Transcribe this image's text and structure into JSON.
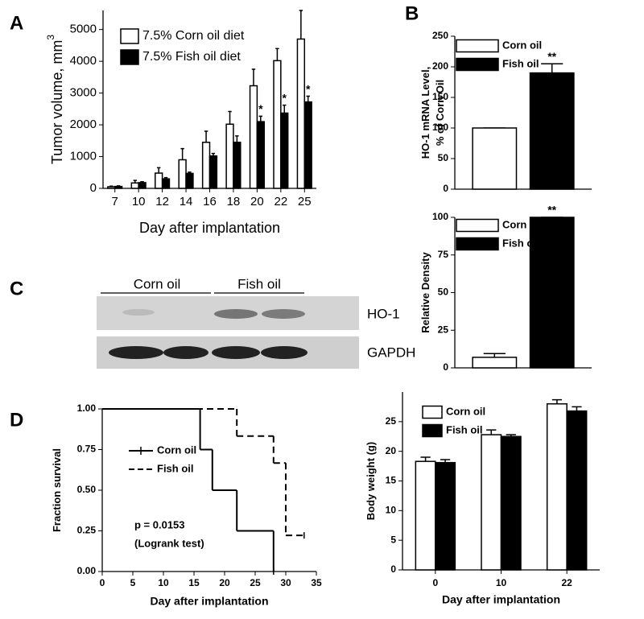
{
  "panel_labels": [
    "A",
    "B",
    "C",
    "D"
  ],
  "chart_data": [
    {
      "type": "bar",
      "categories": [
        "7",
        "10",
        "12",
        "14",
        "16",
        "18",
        "20",
        "22",
        "25"
      ],
      "series": [
        {
          "name": "7.5% Corn oil diet",
          "color": "#ffffff",
          "values": [
            50,
            170,
            480,
            900,
            1450,
            2020,
            3230,
            4020,
            4700
          ],
          "errors": [
            20,
            80,
            170,
            350,
            350,
            400,
            520,
            380,
            900
          ]
        },
        {
          "name": "7.5% Fish oil diet",
          "color": "#000000",
          "values": [
            60,
            180,
            300,
            470,
            1020,
            1450,
            2100,
            2370,
            2720
          ],
          "errors": [
            20,
            30,
            40,
            40,
            80,
            200,
            170,
            250,
            180
          ],
          "significance": [
            null,
            null,
            null,
            null,
            null,
            null,
            "*",
            "*",
            "*"
          ]
        }
      ],
      "ylim": [
        0,
        5600
      ],
      "yticks": [
        0,
        1000,
        2000,
        3000,
        4000,
        5000
      ],
      "x_label": "Day after implantation",
      "y_label": [
        "Tumor volume, mm"
      ],
      "y_label_superscript": "3",
      "legend": "upper left"
    },
    {
      "type": "bar",
      "series": [
        {
          "name": "Corn oil",
          "color": "#ffffff",
          "values": [
            100
          ],
          "errors": [
            0
          ]
        },
        {
          "name": "Fish oil",
          "color": "#000000",
          "values": [
            190
          ],
          "errors": [
            15
          ],
          "significance": [
            "**"
          ]
        }
      ],
      "ylim": [
        0,
        250
      ],
      "yticks": [
        0,
        50,
        100,
        150,
        200,
        250
      ],
      "y_label": [
        "HO-1 mRNA Level,",
        "% of Corn Oil"
      ],
      "legend": "upper left"
    },
    {
      "type": "bar",
      "series": [
        {
          "name": "Corn oil",
          "color": "#ffffff",
          "values": [
            7
          ],
          "errors": [
            2.5
          ]
        },
        {
          "name": "Fish oil",
          "color": "#000000",
          "values": [
            100
          ],
          "errors": [
            0
          ],
          "significance": [
            "**"
          ]
        }
      ],
      "ylim": [
        0,
        100
      ],
      "yticks": [
        0,
        25,
        50,
        75,
        100
      ],
      "y_label": [
        "Relative Density"
      ],
      "legend": "upper left"
    },
    {
      "type": "step",
      "series": [
        {
          "name": "Corn oil",
          "color": "#000000",
          "line_style": "solid",
          "x": [
            0,
            16,
            18,
            22,
            28
          ],
          "values": [
            1,
            0.75,
            0.5,
            0.25,
            0
          ]
        },
        {
          "name": "Fish oil",
          "color": "#000000",
          "line_style": "dashed",
          "x": [
            0,
            22,
            28,
            30,
            33
          ],
          "values": [
            1,
            0.833,
            0.667,
            0.222,
            0.222
          ]
        }
      ],
      "xlim": [
        0,
        35
      ],
      "xticks": [
        0,
        5,
        10,
        15,
        20,
        25,
        30,
        35
      ],
      "ylim": [
        0,
        1
      ],
      "yticks": [
        {
          "value": 0,
          "label": "0.00"
        },
        {
          "value": 0.25,
          "label": "0.25"
        },
        {
          "value": 0.5,
          "label": "0.50"
        },
        {
          "value": 0.75,
          "label": "0.75"
        },
        {
          "value": 1,
          "label": "1.00"
        }
      ],
      "x_label": "Day after implantation",
      "y_label": [
        "Fraction survival"
      ],
      "annotations": [
        "p = 0.0153",
        "(Logrank test)"
      ],
      "legend": "upper left"
    },
    {
      "type": "bar",
      "categories": [
        "0",
        "10",
        "22"
      ],
      "series": [
        {
          "name": "Corn oil",
          "color": "#ffffff",
          "values": [
            18.3,
            22.8,
            28
          ],
          "errors": [
            0.7,
            0.8,
            0.7
          ]
        },
        {
          "name": "Fish oil",
          "color": "#000000",
          "values": [
            18.1,
            22.5,
            26.8
          ],
          "errors": [
            0.5,
            0.3,
            0.7
          ]
        }
      ],
      "ylim": [
        0,
        30
      ],
      "yticks": [
        0,
        5,
        10,
        15,
        20,
        25
      ],
      "x_label": "Day after implantation",
      "y_label": [
        "Body weight (g)"
      ],
      "legend": "upper left"
    }
  ],
  "blot": {
    "groups": [
      "Corn oil",
      "Fish oil"
    ],
    "rows": [
      "HO-1",
      "GAPDH"
    ]
  }
}
